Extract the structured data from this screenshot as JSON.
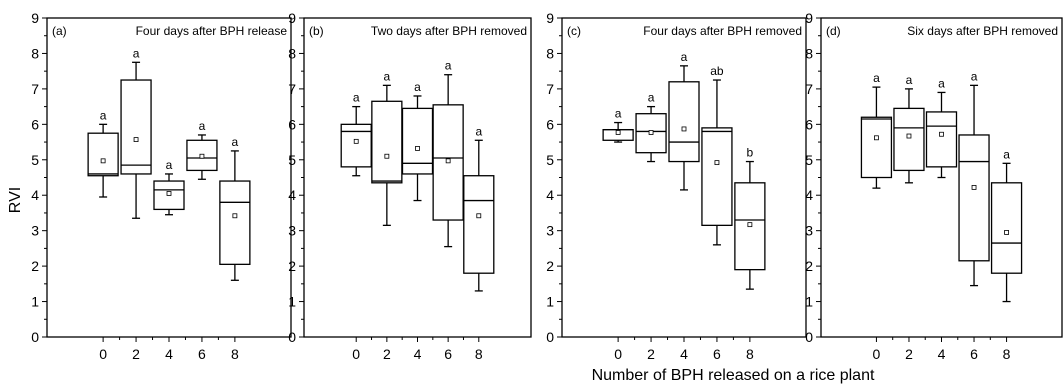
{
  "figure": {
    "ylabel": "RVI",
    "xlabel": "Number of BPH released on a rice plant"
  },
  "chart_data": [
    {
      "type": "box",
      "panel_label": "(a)",
      "title": "Four days after BPH release",
      "categories": [
        "0",
        "2",
        "4",
        "6",
        "8"
      ],
      "ylim": [
        0,
        9
      ],
      "yticks": [
        "0",
        "1",
        "2",
        "3",
        "4",
        "5",
        "6",
        "7",
        "8",
        "9"
      ],
      "boxes": [
        {
          "x": "0",
          "min": 3.95,
          "q1": 4.55,
          "median": 4.6,
          "q3": 5.75,
          "max": 6.0,
          "mean": 4.97,
          "sig": "a"
        },
        {
          "x": "2",
          "min": 3.35,
          "q1": 4.6,
          "median": 4.85,
          "q3": 7.25,
          "max": 7.75,
          "mean": 5.57,
          "sig": "a"
        },
        {
          "x": "4",
          "min": 3.45,
          "q1": 3.6,
          "median": 4.15,
          "q3": 4.4,
          "max": 4.6,
          "mean": 4.05,
          "sig": "a"
        },
        {
          "x": "6",
          "min": 4.45,
          "q1": 4.7,
          "median": 5.05,
          "q3": 5.55,
          "max": 5.7,
          "mean": 5.1,
          "sig": "a"
        },
        {
          "x": "8",
          "min": 1.6,
          "q1": 2.05,
          "median": 3.8,
          "q3": 4.4,
          "max": 5.25,
          "mean": 3.42,
          "sig": "a"
        }
      ]
    },
    {
      "type": "box",
      "panel_label": "(b)",
      "title": "Two days after BPH removed",
      "categories": [
        "0",
        "2",
        "4",
        "6",
        "8"
      ],
      "ylim": [
        0,
        9
      ],
      "yticks": [
        "0",
        "1",
        "2",
        "3",
        "4",
        "5",
        "6",
        "7",
        "8",
        "9"
      ],
      "boxes": [
        {
          "x": "0",
          "min": 4.55,
          "q1": 4.8,
          "median": 5.8,
          "q3": 6.0,
          "max": 6.5,
          "mean": 5.52,
          "sig": "a"
        },
        {
          "x": "2",
          "min": 3.15,
          "q1": 4.35,
          "median": 4.4,
          "q3": 6.65,
          "max": 7.1,
          "mean": 5.1,
          "sig": "a"
        },
        {
          "x": "4",
          "min": 3.85,
          "q1": 4.6,
          "median": 4.9,
          "q3": 6.45,
          "max": 6.8,
          "mean": 5.32,
          "sig": "a"
        },
        {
          "x": "6",
          "min": 2.55,
          "q1": 3.3,
          "median": 5.05,
          "q3": 6.55,
          "max": 7.4,
          "mean": 4.97,
          "sig": "a"
        },
        {
          "x": "8",
          "min": 1.3,
          "q1": 1.8,
          "median": 3.85,
          "q3": 4.55,
          "max": 5.55,
          "mean": 3.42,
          "sig": "a"
        }
      ]
    },
    {
      "type": "box",
      "panel_label": "(c)",
      "title": "Four days after BPH removed",
      "categories": [
        "0",
        "2",
        "4",
        "6",
        "8"
      ],
      "ylim": [
        0,
        9
      ],
      "yticks": [
        "0",
        "1",
        "2",
        "3",
        "4",
        "5",
        "6",
        "7",
        "8",
        "9"
      ],
      "boxes": [
        {
          "x": "0",
          "min": 5.5,
          "q1": 5.55,
          "median": 5.85,
          "q3": 5.85,
          "max": 6.05,
          "mean": 5.77,
          "sig": "a"
        },
        {
          "x": "2",
          "min": 4.95,
          "q1": 5.2,
          "median": 5.8,
          "q3": 6.3,
          "max": 6.5,
          "mean": 5.77,
          "sig": "a"
        },
        {
          "x": "4",
          "min": 4.15,
          "q1": 4.95,
          "median": 5.5,
          "q3": 7.2,
          "max": 7.65,
          "mean": 5.87,
          "sig": "a"
        },
        {
          "x": "6",
          "min": 2.6,
          "q1": 3.15,
          "median": 5.8,
          "q3": 5.9,
          "max": 7.25,
          "mean": 4.92,
          "sig": "ab"
        },
        {
          "x": "8",
          "min": 1.35,
          "q1": 1.9,
          "median": 3.3,
          "q3": 4.35,
          "max": 4.95,
          "mean": 3.17,
          "sig": "b"
        }
      ]
    },
    {
      "type": "box",
      "panel_label": "(d)",
      "title": "Six days after BPH removed",
      "categories": [
        "0",
        "2",
        "4",
        "6",
        "8"
      ],
      "ylim": [
        0,
        9
      ],
      "yticks": [
        "0",
        "1",
        "2",
        "3",
        "4",
        "5",
        "6",
        "7",
        "8",
        "9"
      ],
      "boxes": [
        {
          "x": "0",
          "min": 4.2,
          "q1": 4.5,
          "median": 6.15,
          "q3": 6.2,
          "max": 7.05,
          "mean": 5.62,
          "sig": "a"
        },
        {
          "x": "2",
          "min": 4.35,
          "q1": 4.7,
          "median": 5.9,
          "q3": 6.45,
          "max": 7.0,
          "mean": 5.67,
          "sig": "a"
        },
        {
          "x": "4",
          "min": 4.5,
          "q1": 4.8,
          "median": 5.95,
          "q3": 6.35,
          "max": 6.9,
          "mean": 5.72,
          "sig": "a"
        },
        {
          "x": "6",
          "min": 1.45,
          "q1": 2.15,
          "median": 4.95,
          "q3": 5.7,
          "max": 7.1,
          "mean": 4.22,
          "sig": "a"
        },
        {
          "x": "8",
          "min": 1.0,
          "q1": 1.8,
          "median": 2.65,
          "q3": 4.35,
          "max": 4.9,
          "mean": 2.95,
          "sig": "a"
        }
      ]
    }
  ]
}
